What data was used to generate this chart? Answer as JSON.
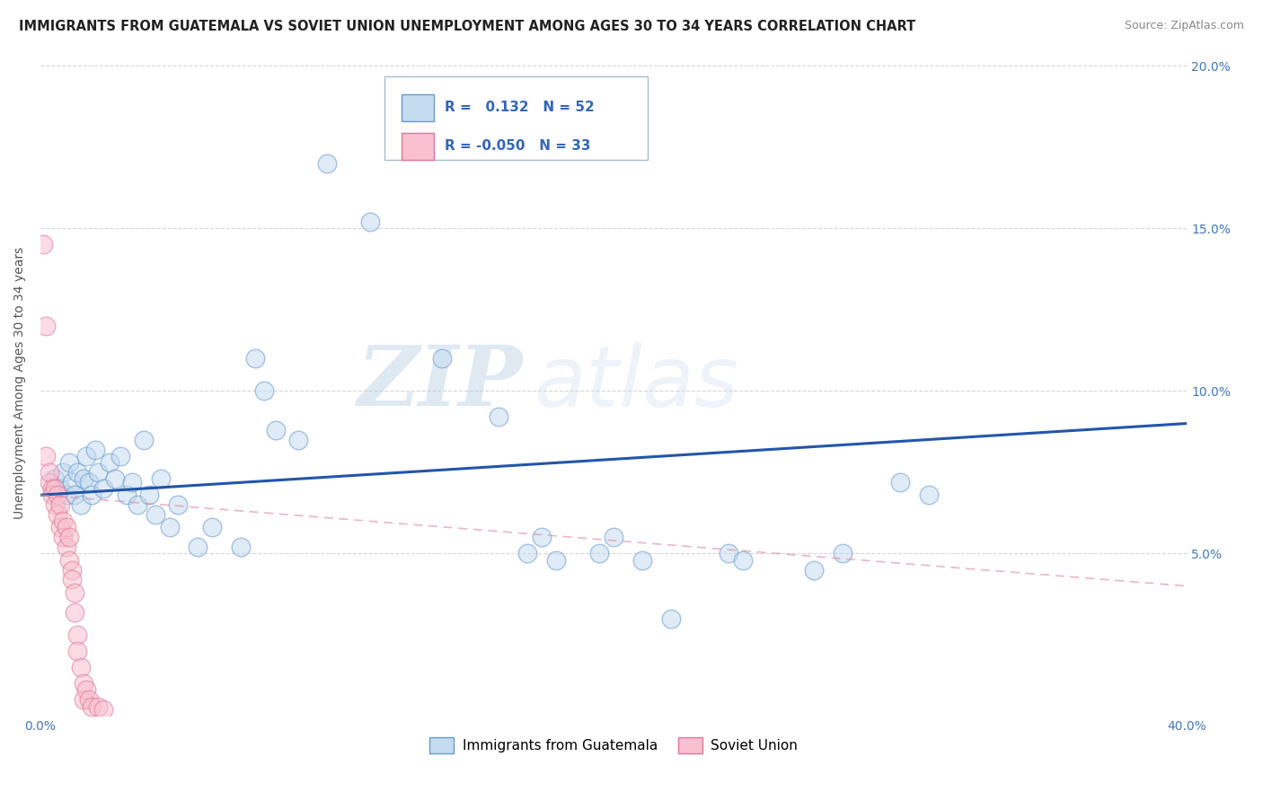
{
  "title": "IMMIGRANTS FROM GUATEMALA VS SOVIET UNION UNEMPLOYMENT AMONG AGES 30 TO 34 YEARS CORRELATION CHART",
  "source": "Source: ZipAtlas.com",
  "ylabel": "Unemployment Among Ages 30 to 34 years",
  "xlim": [
    0.0,
    0.4
  ],
  "ylim": [
    0.0,
    0.205
  ],
  "xtick_positions": [
    0.0,
    0.1,
    0.2,
    0.3,
    0.4
  ],
  "xtick_labels_left": [
    "0.0%",
    "",
    "",
    "",
    ""
  ],
  "xtick_labels_right": [
    "",
    "",
    "",
    "",
    "40.0%"
  ],
  "ytick_positions": [
    0.0,
    0.05,
    0.1,
    0.15,
    0.2
  ],
  "ytick_labels": [
    "",
    "5.0%",
    "10.0%",
    "15.0%",
    "20.0%"
  ],
  "legend_blue_r": "0.132",
  "legend_blue_n": "52",
  "legend_pink_r": "-0.050",
  "legend_pink_n": "33",
  "legend_blue_label": "Immigrants from Guatemala",
  "legend_pink_label": "Soviet Union",
  "blue_scatter": [
    [
      0.005,
      0.073
    ],
    [
      0.007,
      0.07
    ],
    [
      0.008,
      0.075
    ],
    [
      0.009,
      0.068
    ],
    [
      0.01,
      0.078
    ],
    [
      0.011,
      0.072
    ],
    [
      0.012,
      0.068
    ],
    [
      0.013,
      0.075
    ],
    [
      0.014,
      0.065
    ],
    [
      0.015,
      0.073
    ],
    [
      0.016,
      0.08
    ],
    [
      0.017,
      0.072
    ],
    [
      0.018,
      0.068
    ],
    [
      0.019,
      0.082
    ],
    [
      0.02,
      0.075
    ],
    [
      0.022,
      0.07
    ],
    [
      0.024,
      0.078
    ],
    [
      0.026,
      0.073
    ],
    [
      0.028,
      0.08
    ],
    [
      0.03,
      0.068
    ],
    [
      0.032,
      0.072
    ],
    [
      0.034,
      0.065
    ],
    [
      0.036,
      0.085
    ],
    [
      0.038,
      0.068
    ],
    [
      0.04,
      0.062
    ],
    [
      0.042,
      0.073
    ],
    [
      0.045,
      0.058
    ],
    [
      0.048,
      0.065
    ],
    [
      0.055,
      0.052
    ],
    [
      0.06,
      0.058
    ],
    [
      0.07,
      0.052
    ],
    [
      0.075,
      0.11
    ],
    [
      0.078,
      0.1
    ],
    [
      0.082,
      0.088
    ],
    [
      0.09,
      0.085
    ],
    [
      0.1,
      0.17
    ],
    [
      0.115,
      0.152
    ],
    [
      0.14,
      0.11
    ],
    [
      0.16,
      0.092
    ],
    [
      0.17,
      0.05
    ],
    [
      0.175,
      0.055
    ],
    [
      0.18,
      0.048
    ],
    [
      0.195,
      0.05
    ],
    [
      0.2,
      0.055
    ],
    [
      0.21,
      0.048
    ],
    [
      0.22,
      0.03
    ],
    [
      0.24,
      0.05
    ],
    [
      0.245,
      0.048
    ],
    [
      0.27,
      0.045
    ],
    [
      0.28,
      0.05
    ],
    [
      0.3,
      0.072
    ],
    [
      0.31,
      0.068
    ]
  ],
  "pink_scatter": [
    [
      0.001,
      0.145
    ],
    [
      0.002,
      0.12
    ],
    [
      0.002,
      0.08
    ],
    [
      0.003,
      0.072
    ],
    [
      0.003,
      0.075
    ],
    [
      0.004,
      0.07
    ],
    [
      0.004,
      0.068
    ],
    [
      0.005,
      0.065
    ],
    [
      0.005,
      0.07
    ],
    [
      0.006,
      0.068
    ],
    [
      0.006,
      0.062
    ],
    [
      0.007,
      0.065
    ],
    [
      0.007,
      0.058
    ],
    [
      0.008,
      0.06
    ],
    [
      0.008,
      0.055
    ],
    [
      0.009,
      0.058
    ],
    [
      0.009,
      0.052
    ],
    [
      0.01,
      0.055
    ],
    [
      0.01,
      0.048
    ],
    [
      0.011,
      0.045
    ],
    [
      0.011,
      0.042
    ],
    [
      0.012,
      0.038
    ],
    [
      0.012,
      0.032
    ],
    [
      0.013,
      0.025
    ],
    [
      0.013,
      0.02
    ],
    [
      0.014,
      0.015
    ],
    [
      0.015,
      0.01
    ],
    [
      0.015,
      0.005
    ],
    [
      0.016,
      0.008
    ],
    [
      0.017,
      0.005
    ],
    [
      0.018,
      0.003
    ],
    [
      0.02,
      0.003
    ],
    [
      0.022,
      0.002
    ]
  ],
  "blue_line_x": [
    0.0,
    0.4
  ],
  "blue_line_y": [
    0.068,
    0.09
  ],
  "pink_line_x": [
    0.0,
    0.4
  ],
  "pink_line_y": [
    0.068,
    0.04
  ],
  "watermark_zip": "ZIP",
  "watermark_atlas": "atlas",
  "background_color": "#ffffff",
  "scatter_alpha": 0.55,
  "blue_fill": "#c5dbf0",
  "blue_edge": "#6699cc",
  "pink_fill": "#f8c0d0",
  "pink_edge": "#dd7799",
  "blue_line_color": "#2255aa",
  "pink_line_color": "#dd8899",
  "grid_color": "#cccccc",
  "title_fontsize": 10.5,
  "ylabel_fontsize": 10,
  "tick_fontsize": 10,
  "legend_fontsize": 11
}
